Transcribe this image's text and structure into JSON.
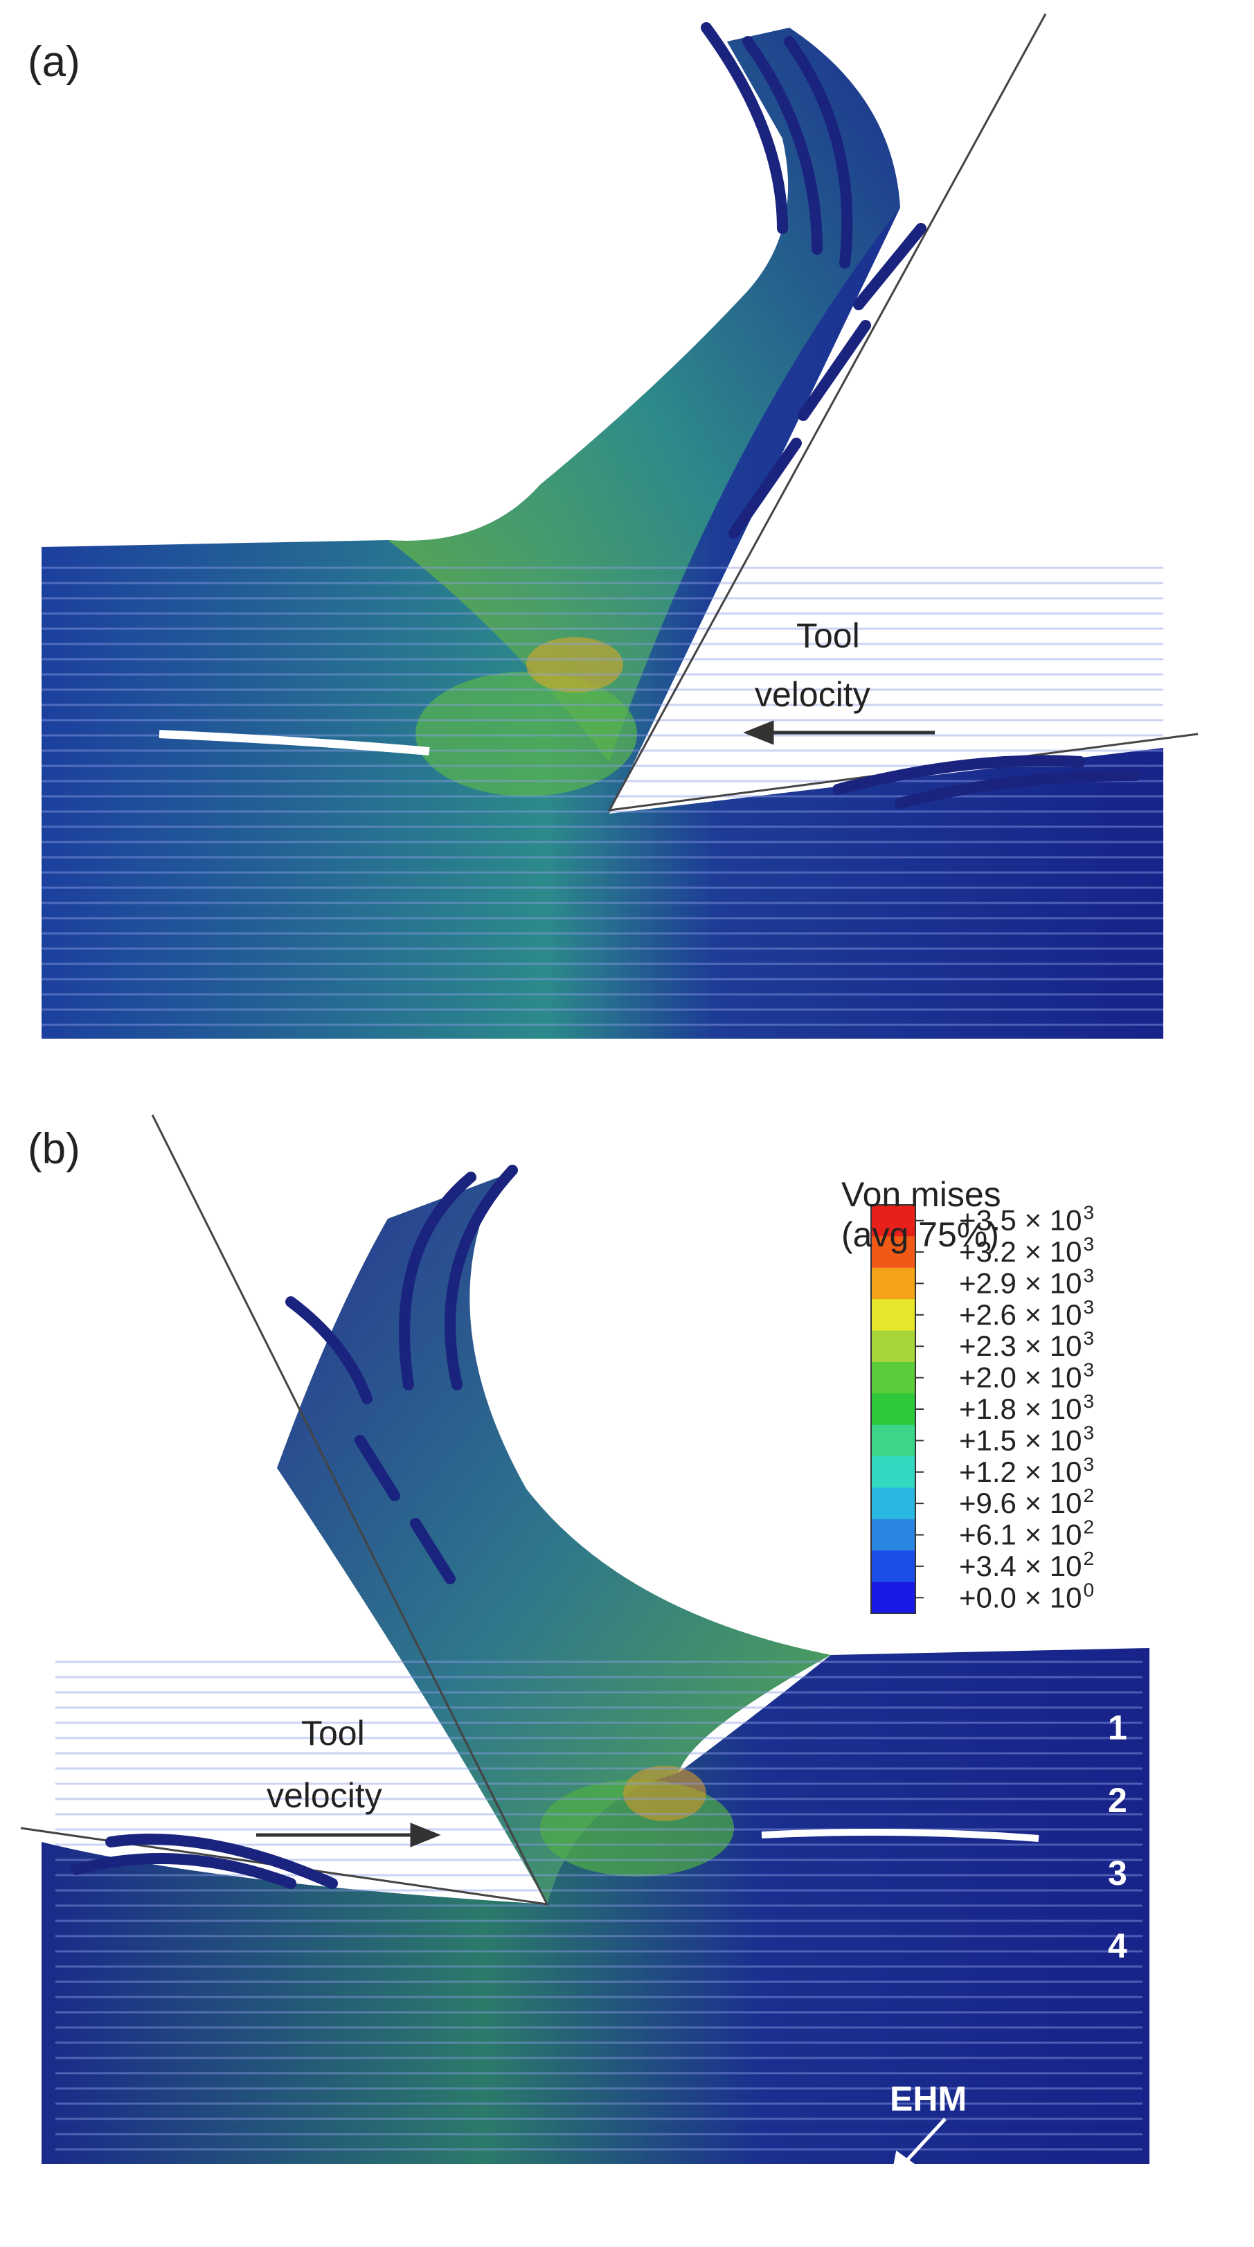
{
  "panel_a": {
    "label": "(a)",
    "tool_velocity": [
      "Tool",
      "velocity"
    ]
  },
  "panel_b": {
    "label": "(b)",
    "tool_velocity": [
      "Tool",
      "velocity"
    ],
    "layers": [
      "1",
      "2",
      "3",
      "4"
    ],
    "ehm": "EHM"
  },
  "legend": {
    "title": [
      "Von mises",
      "(avg 75%)"
    ],
    "entries": [
      {
        "text": "+3.5 × 10",
        "exp": "3"
      },
      {
        "text": "+3.2 × 10",
        "exp": "3"
      },
      {
        "text": "+2.9 × 10",
        "exp": "3"
      },
      {
        "text": "+2.6 × 10",
        "exp": "3"
      },
      {
        "text": "+2.3 × 10",
        "exp": "3"
      },
      {
        "text": "+2.0 × 10",
        "exp": "3"
      },
      {
        "text": "+1.8 × 10",
        "exp": "3"
      },
      {
        "text": "+1.5 × 10",
        "exp": "3"
      },
      {
        "text": "+1.2 × 10",
        "exp": "3"
      },
      {
        "text": "+9.6 × 10",
        "exp": "2"
      },
      {
        "text": "+6.1 × 10",
        "exp": "2"
      },
      {
        "text": "+3.4 × 10",
        "exp": "2"
      },
      {
        "text": "+0.0 × 10",
        "exp": "0"
      }
    ],
    "colors": [
      "#e8201a",
      "#f05a16",
      "#f5a21a",
      "#e6e62a",
      "#a6d63a",
      "#5ccc3a",
      "#2ec83a",
      "#3cd68a",
      "#34d8c0",
      "#2ab8e0",
      "#2a86e0",
      "#1a4ee6",
      "#1a1ae6"
    ]
  }
}
